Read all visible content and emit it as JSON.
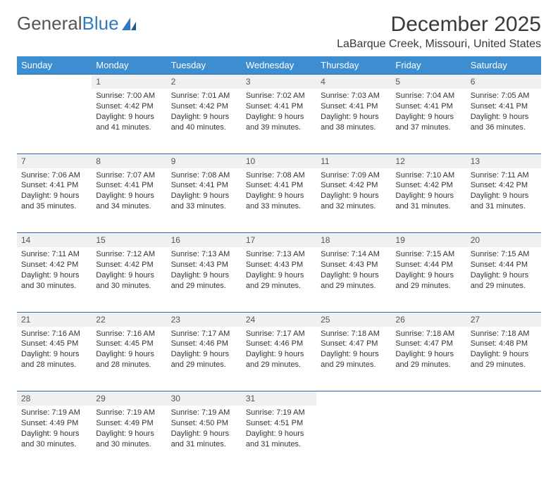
{
  "brand": {
    "part1": "General",
    "part2": "Blue"
  },
  "title": "December 2025",
  "location": "LaBarque Creek, Missouri, United States",
  "colors": {
    "header_bg": "#3d8dd1",
    "header_text": "#ffffff",
    "daynum_bg": "#eef0f2",
    "rule": "#2a6ca8",
    "brand_blue": "#2f7bbf",
    "text": "#333333"
  },
  "weekdays": [
    "Sunday",
    "Monday",
    "Tuesday",
    "Wednesday",
    "Thursday",
    "Friday",
    "Saturday"
  ],
  "weeks": [
    {
      "nums": [
        "",
        "1",
        "2",
        "3",
        "4",
        "5",
        "6"
      ],
      "cells": [
        null,
        {
          "sr": "Sunrise: 7:00 AM",
          "ss": "Sunset: 4:42 PM",
          "dl1": "Daylight: 9 hours",
          "dl2": "and 41 minutes."
        },
        {
          "sr": "Sunrise: 7:01 AM",
          "ss": "Sunset: 4:42 PM",
          "dl1": "Daylight: 9 hours",
          "dl2": "and 40 minutes."
        },
        {
          "sr": "Sunrise: 7:02 AM",
          "ss": "Sunset: 4:41 PM",
          "dl1": "Daylight: 9 hours",
          "dl2": "and 39 minutes."
        },
        {
          "sr": "Sunrise: 7:03 AM",
          "ss": "Sunset: 4:41 PM",
          "dl1": "Daylight: 9 hours",
          "dl2": "and 38 minutes."
        },
        {
          "sr": "Sunrise: 7:04 AM",
          "ss": "Sunset: 4:41 PM",
          "dl1": "Daylight: 9 hours",
          "dl2": "and 37 minutes."
        },
        {
          "sr": "Sunrise: 7:05 AM",
          "ss": "Sunset: 4:41 PM",
          "dl1": "Daylight: 9 hours",
          "dl2": "and 36 minutes."
        }
      ]
    },
    {
      "nums": [
        "7",
        "8",
        "9",
        "10",
        "11",
        "12",
        "13"
      ],
      "cells": [
        {
          "sr": "Sunrise: 7:06 AM",
          "ss": "Sunset: 4:41 PM",
          "dl1": "Daylight: 9 hours",
          "dl2": "and 35 minutes."
        },
        {
          "sr": "Sunrise: 7:07 AM",
          "ss": "Sunset: 4:41 PM",
          "dl1": "Daylight: 9 hours",
          "dl2": "and 34 minutes."
        },
        {
          "sr": "Sunrise: 7:08 AM",
          "ss": "Sunset: 4:41 PM",
          "dl1": "Daylight: 9 hours",
          "dl2": "and 33 minutes."
        },
        {
          "sr": "Sunrise: 7:08 AM",
          "ss": "Sunset: 4:41 PM",
          "dl1": "Daylight: 9 hours",
          "dl2": "and 33 minutes."
        },
        {
          "sr": "Sunrise: 7:09 AM",
          "ss": "Sunset: 4:42 PM",
          "dl1": "Daylight: 9 hours",
          "dl2": "and 32 minutes."
        },
        {
          "sr": "Sunrise: 7:10 AM",
          "ss": "Sunset: 4:42 PM",
          "dl1": "Daylight: 9 hours",
          "dl2": "and 31 minutes."
        },
        {
          "sr": "Sunrise: 7:11 AM",
          "ss": "Sunset: 4:42 PM",
          "dl1": "Daylight: 9 hours",
          "dl2": "and 31 minutes."
        }
      ]
    },
    {
      "nums": [
        "14",
        "15",
        "16",
        "17",
        "18",
        "19",
        "20"
      ],
      "cells": [
        {
          "sr": "Sunrise: 7:11 AM",
          "ss": "Sunset: 4:42 PM",
          "dl1": "Daylight: 9 hours",
          "dl2": "and 30 minutes."
        },
        {
          "sr": "Sunrise: 7:12 AM",
          "ss": "Sunset: 4:42 PM",
          "dl1": "Daylight: 9 hours",
          "dl2": "and 30 minutes."
        },
        {
          "sr": "Sunrise: 7:13 AM",
          "ss": "Sunset: 4:43 PM",
          "dl1": "Daylight: 9 hours",
          "dl2": "and 29 minutes."
        },
        {
          "sr": "Sunrise: 7:13 AM",
          "ss": "Sunset: 4:43 PM",
          "dl1": "Daylight: 9 hours",
          "dl2": "and 29 minutes."
        },
        {
          "sr": "Sunrise: 7:14 AM",
          "ss": "Sunset: 4:43 PM",
          "dl1": "Daylight: 9 hours",
          "dl2": "and 29 minutes."
        },
        {
          "sr": "Sunrise: 7:15 AM",
          "ss": "Sunset: 4:44 PM",
          "dl1": "Daylight: 9 hours",
          "dl2": "and 29 minutes."
        },
        {
          "sr": "Sunrise: 7:15 AM",
          "ss": "Sunset: 4:44 PM",
          "dl1": "Daylight: 9 hours",
          "dl2": "and 29 minutes."
        }
      ]
    },
    {
      "nums": [
        "21",
        "22",
        "23",
        "24",
        "25",
        "26",
        "27"
      ],
      "cells": [
        {
          "sr": "Sunrise: 7:16 AM",
          "ss": "Sunset: 4:45 PM",
          "dl1": "Daylight: 9 hours",
          "dl2": "and 28 minutes."
        },
        {
          "sr": "Sunrise: 7:16 AM",
          "ss": "Sunset: 4:45 PM",
          "dl1": "Daylight: 9 hours",
          "dl2": "and 28 minutes."
        },
        {
          "sr": "Sunrise: 7:17 AM",
          "ss": "Sunset: 4:46 PM",
          "dl1": "Daylight: 9 hours",
          "dl2": "and 29 minutes."
        },
        {
          "sr": "Sunrise: 7:17 AM",
          "ss": "Sunset: 4:46 PM",
          "dl1": "Daylight: 9 hours",
          "dl2": "and 29 minutes."
        },
        {
          "sr": "Sunrise: 7:18 AM",
          "ss": "Sunset: 4:47 PM",
          "dl1": "Daylight: 9 hours",
          "dl2": "and 29 minutes."
        },
        {
          "sr": "Sunrise: 7:18 AM",
          "ss": "Sunset: 4:47 PM",
          "dl1": "Daylight: 9 hours",
          "dl2": "and 29 minutes."
        },
        {
          "sr": "Sunrise: 7:18 AM",
          "ss": "Sunset: 4:48 PM",
          "dl1": "Daylight: 9 hours",
          "dl2": "and 29 minutes."
        }
      ]
    },
    {
      "nums": [
        "28",
        "29",
        "30",
        "31",
        "",
        "",
        ""
      ],
      "cells": [
        {
          "sr": "Sunrise: 7:19 AM",
          "ss": "Sunset: 4:49 PM",
          "dl1": "Daylight: 9 hours",
          "dl2": "and 30 minutes."
        },
        {
          "sr": "Sunrise: 7:19 AM",
          "ss": "Sunset: 4:49 PM",
          "dl1": "Daylight: 9 hours",
          "dl2": "and 30 minutes."
        },
        {
          "sr": "Sunrise: 7:19 AM",
          "ss": "Sunset: 4:50 PM",
          "dl1": "Daylight: 9 hours",
          "dl2": "and 31 minutes."
        },
        {
          "sr": "Sunrise: 7:19 AM",
          "ss": "Sunset: 4:51 PM",
          "dl1": "Daylight: 9 hours",
          "dl2": "and 31 minutes."
        },
        null,
        null,
        null
      ]
    }
  ]
}
